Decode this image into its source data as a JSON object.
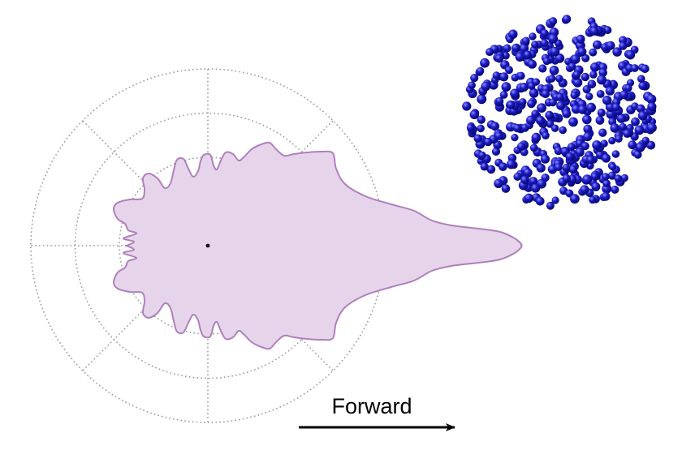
{
  "figure": {
    "direction_label": "Forward",
    "colors": {
      "grid": "#9a9a9a",
      "pattern_fill": "#e6d5ea",
      "pattern_stroke": "#b07fbc",
      "particle": "#1c1cc8",
      "particle_highlight": "#8f8fff",
      "particle_shadow": "#06066a",
      "arrow": "#000000",
      "center_dot": "#000000"
    },
    "polar_grid": {
      "rings": 4,
      "spokes": 8
    },
    "particle_cluster": {
      "shape": "sphere",
      "icon": "nanoparticle-aggregate-icon"
    }
  }
}
